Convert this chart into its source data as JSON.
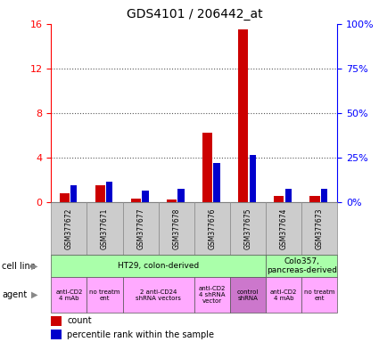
{
  "title": "GDS4101 / 206442_at",
  "samples": [
    "GSM377672",
    "GSM377671",
    "GSM377677",
    "GSM377678",
    "GSM377676",
    "GSM377675",
    "GSM377674",
    "GSM377673"
  ],
  "count_values": [
    0.75,
    1.5,
    0.25,
    0.18,
    6.2,
    15.5,
    0.55,
    0.55
  ],
  "percentile_values": [
    1.5,
    1.8,
    1.0,
    1.2,
    3.5,
    4.2,
    1.2,
    1.2
  ],
  "ylim_left": [
    0,
    16
  ],
  "ylim_right": [
    0,
    100
  ],
  "yticks_left": [
    0,
    4,
    8,
    12,
    16
  ],
  "yticks_right": [
    0,
    25,
    50,
    75,
    100
  ],
  "ytick_labels_right": [
    "0%",
    "25%",
    "50%",
    "75%",
    "100%"
  ],
  "count_color": "#cc0000",
  "percentile_color": "#0000cc",
  "cell_line_groups": [
    {
      "label": "HT29, colon-derived",
      "start": 0,
      "end": 6,
      "color": "#aaffaa"
    },
    {
      "label": "Colo357,\npancreas-derived",
      "start": 6,
      "end": 8,
      "color": "#aaffaa"
    }
  ],
  "agent_groups": [
    {
      "label": "anti-CD2\n4 mAb",
      "start": 0,
      "end": 1,
      "color": "#ffaaff"
    },
    {
      "label": "no treatm\nent",
      "start": 1,
      "end": 2,
      "color": "#ffaaff"
    },
    {
      "label": "2 anti-CD24\nshRNA vectors",
      "start": 2,
      "end": 4,
      "color": "#ffaaff"
    },
    {
      "label": "anti-CD2\n4 shRNA\nvector",
      "start": 4,
      "end": 5,
      "color": "#ffaaff"
    },
    {
      "label": "control\nshRNA",
      "start": 5,
      "end": 6,
      "color": "#cc77cc"
    },
    {
      "label": "anti-CD2\n4 mAb",
      "start": 6,
      "end": 7,
      "color": "#ffaaff"
    },
    {
      "label": "no treatm\nent",
      "start": 7,
      "end": 8,
      "color": "#ffaaff"
    }
  ],
  "sample_box_color": "#cccccc",
  "grid_color": "#555555",
  "background_color": "#ffffff"
}
